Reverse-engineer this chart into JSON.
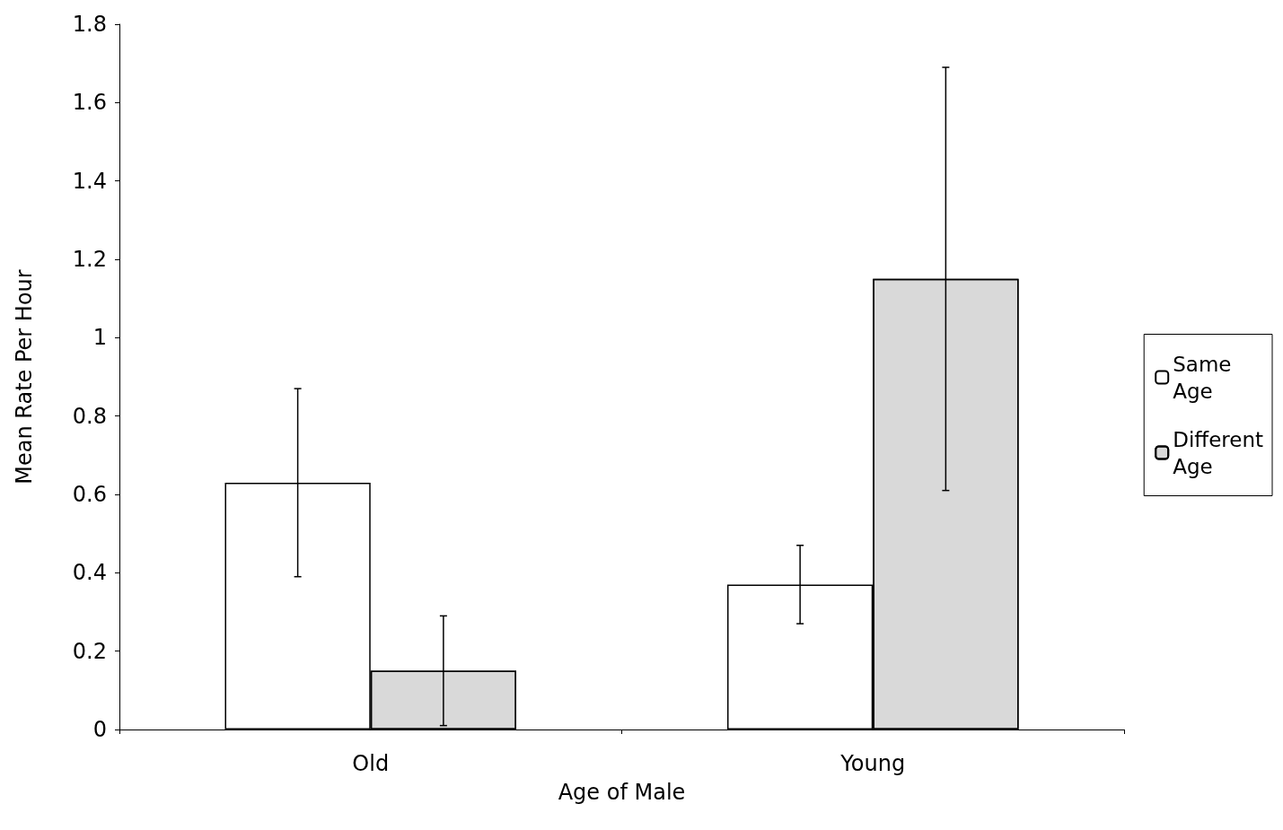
{
  "chart_data": {
    "type": "bar",
    "xlabel": "Age of Male",
    "ylabel": "Mean Rate Per Hour",
    "categories": [
      "Old",
      "Young"
    ],
    "series": [
      {
        "name": "Same Age",
        "color": "#ffffff",
        "values": [
          0.63,
          0.37
        ],
        "errors": [
          0.24,
          0.1
        ]
      },
      {
        "name": "Different Age",
        "color": "#d9d9d9",
        "values": [
          0.15,
          1.15
        ],
        "errors": [
          0.14,
          0.54
        ]
      }
    ],
    "ylim": [
      0,
      1.8
    ],
    "yticks": [
      0,
      0.2,
      0.4,
      0.6,
      0.8,
      1,
      1.2,
      1.4,
      1.6,
      1.8
    ],
    "grid": false,
    "legend": "right"
  }
}
